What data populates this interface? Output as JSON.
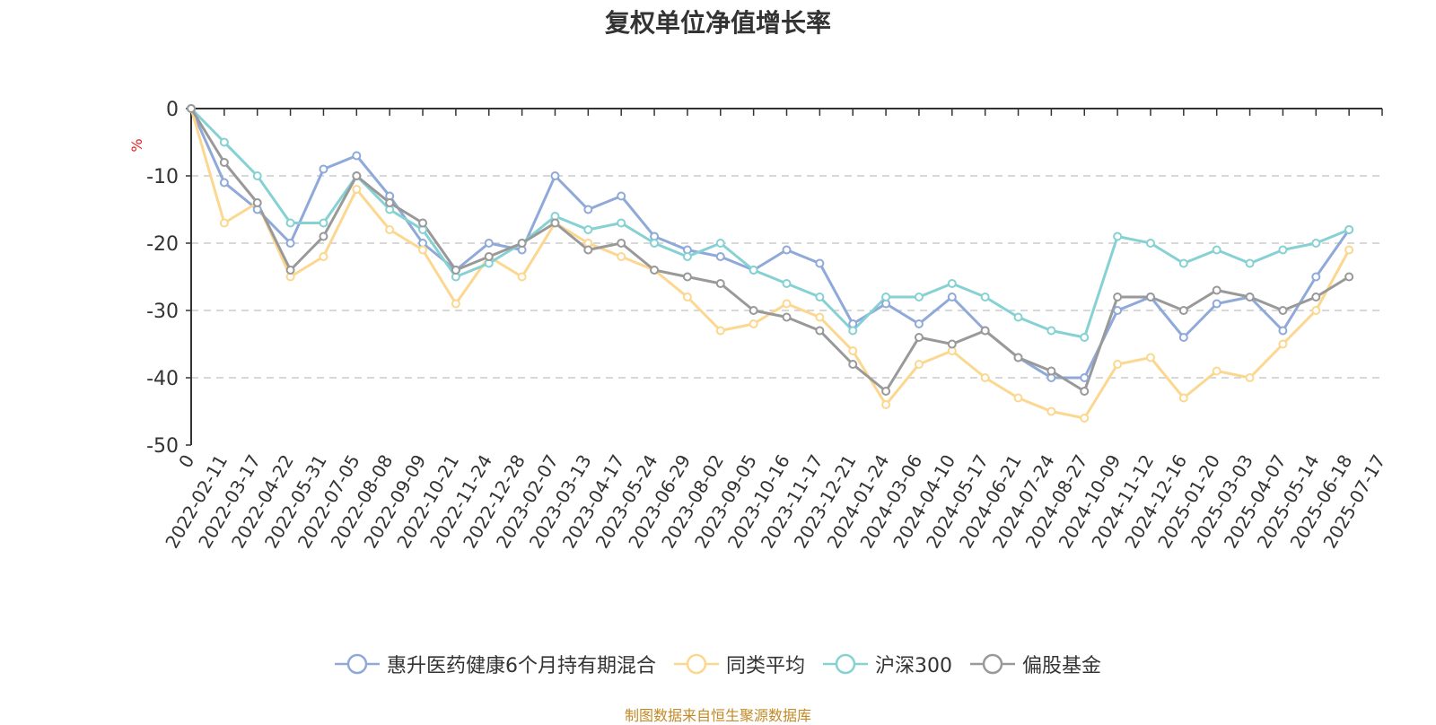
{
  "chart_data": {
    "type": "line",
    "title": "复权单位净值增长率",
    "ylabel": "%",
    "xlabel": "",
    "ylim": [
      -50,
      0
    ],
    "yticks": [
      0,
      -10,
      -20,
      -30,
      -40,
      -50
    ],
    "x_origin_label": "0",
    "x_tick_labels": [
      "2022-02-11",
      "2022-03-17",
      "2022-04-22",
      "2022-05-31",
      "2022-07-05",
      "2022-08-08",
      "2022-09-09",
      "2022-10-21",
      "2022-11-24",
      "2022-12-28",
      "2023-02-07",
      "2023-03-13",
      "2023-04-17",
      "2023-05-24",
      "2023-06-29",
      "2023-08-02",
      "2023-09-05",
      "2023-10-16",
      "2023-11-17",
      "2023-12-21",
      "2024-01-24",
      "2024-03-06",
      "2024-04-10",
      "2024-05-17",
      "2024-06-21",
      "2024-07-24",
      "2024-08-27",
      "2024-10-09",
      "2024-11-12",
      "2024-12-16",
      "2025-01-20",
      "2025-03-03",
      "2025-04-07",
      "2025-05-14",
      "2025-06-18",
      "2025-07-17"
    ],
    "grid": "horizontal dashed",
    "legend_position": "bottom",
    "series": [
      {
        "name": "惠升医药健康6个月持有期混合",
        "color": "#8fa9d9",
        "values": [
          0,
          -11,
          -15,
          -20,
          -9,
          -7,
          -13,
          -20,
          -24,
          -20,
          -21,
          -10,
          -15,
          -13,
          -19,
          -21,
          -22,
          -24,
          -21,
          -23,
          -32,
          -29,
          -32,
          -28,
          -33,
          -37,
          -40,
          -40,
          -30,
          -28,
          -34,
          -29,
          -28,
          -33,
          -25,
          -18
        ]
      },
      {
        "name": "同类平均",
        "color": "#fcd78f",
        "values": [
          0,
          -17,
          -14,
          -25,
          -22,
          -12,
          -18,
          -21,
          -29,
          -22,
          -25,
          -17,
          -20,
          -22,
          -24,
          -28,
          -33,
          -32,
          -29,
          -31,
          -36,
          -44,
          -38,
          -36,
          -40,
          -43,
          -45,
          -46,
          -38,
          -37,
          -43,
          -39,
          -40,
          -35,
          -30,
          -21
        ]
      },
      {
        "name": "沪深300",
        "color": "#86d1d3",
        "values": [
          0,
          -5,
          -10,
          -17,
          -17,
          -10,
          -15,
          -18,
          -25,
          -23,
          -20,
          -16,
          -18,
          -17,
          -20,
          -22,
          -20,
          -24,
          -26,
          -28,
          -33,
          -28,
          -28,
          -26,
          -28,
          -31,
          -33,
          -34,
          -19,
          -20,
          -23,
          -21,
          -23,
          -21,
          -20,
          -18
        ]
      },
      {
        "name": "偏股基金",
        "color": "#999999",
        "values": [
          0,
          -8,
          -14,
          -24,
          -19,
          -10,
          -14,
          -17,
          -24,
          -22,
          -20,
          -17,
          -21,
          -20,
          -24,
          -25,
          -26,
          -30,
          -31,
          -33,
          -38,
          -42,
          -34,
          -35,
          -33,
          -37,
          -39,
          -42,
          -28,
          -28,
          -30,
          -27,
          -28,
          -30,
          -28,
          -25
        ]
      }
    ]
  },
  "source_note": "制图数据来自恒生聚源数据库"
}
